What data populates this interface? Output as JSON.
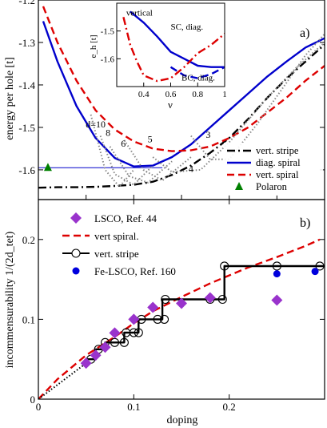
{
  "chart_data": [
    {
      "type": "line",
      "panel_label": "a)",
      "xlim": [
        0,
        0.3
      ],
      "ylim": [
        -1.67,
        -1.2
      ],
      "ylabel": "energy per hole [t]",
      "yticks": [
        -1.6,
        -1.5,
        -1.4,
        -1.3,
        -1.2
      ],
      "ytick_labels": [
        "-1.6",
        "-1.5",
        "-1.4",
        "-1.3",
        "-1.2"
      ],
      "legend_position": "bottom-right",
      "legend": [
        {
          "label": "vert. stripe",
          "style": "dashdot",
          "color": "#000000"
        },
        {
          "label": "diag. spiral",
          "style": "solid",
          "color": "#0000cc"
        },
        {
          "label": "vert. spiral",
          "style": "dashed",
          "color": "#dd0000"
        },
        {
          "label": "Polaron",
          "style": "triangle",
          "color": "#008000"
        }
      ],
      "series": [
        {
          "name": "vert. stripe",
          "color": "#000000",
          "style": "dashdot",
          "x": [
            0,
            0.02,
            0.04,
            0.06,
            0.08,
            0.1,
            0.12,
            0.14,
            0.16,
            0.18,
            0.2,
            0.22,
            0.24,
            0.26,
            0.28,
            0.3
          ],
          "y": [
            -1.642,
            -1.641,
            -1.641,
            -1.64,
            -1.638,
            -1.635,
            -1.628,
            -1.612,
            -1.59,
            -1.56,
            -1.525,
            -1.48,
            -1.43,
            -1.385,
            -1.345,
            -1.305
          ]
        },
        {
          "name": "diag. spiral",
          "color": "#0000cc",
          "style": "solid",
          "x": [
            0.005,
            0.02,
            0.04,
            0.06,
            0.08,
            0.1,
            0.12,
            0.14,
            0.16,
            0.18,
            0.2,
            0.22,
            0.24,
            0.26,
            0.28,
            0.3
          ],
          "y": [
            -1.25,
            -1.345,
            -1.45,
            -1.525,
            -1.572,
            -1.592,
            -1.59,
            -1.57,
            -1.54,
            -1.5,
            -1.46,
            -1.42,
            -1.38,
            -1.345,
            -1.312,
            -1.29
          ]
        },
        {
          "name": "vert. spiral",
          "color": "#dd0000",
          "style": "dashed",
          "x": [
            0.005,
            0.02,
            0.04,
            0.06,
            0.08,
            0.1,
            0.12,
            0.14,
            0.16,
            0.18,
            0.2,
            0.22,
            0.24,
            0.26,
            0.28,
            0.3
          ],
          "y": [
            -1.215,
            -1.3,
            -1.39,
            -1.46,
            -1.505,
            -1.533,
            -1.55,
            -1.556,
            -1.554,
            -1.545,
            -1.525,
            -1.5,
            -1.465,
            -1.43,
            -1.39,
            -1.355
          ]
        },
        {
          "name": "Polaron-line",
          "color": "#0000cc",
          "style": "thin",
          "x": [
            0.0,
            0.13
          ],
          "y": [
            -1.595,
            -1.595
          ]
        },
        {
          "name": "d=10",
          "color": "#888888",
          "style": "dotted",
          "x": [
            0.055,
            0.07,
            0.085,
            0.1
          ],
          "y": [
            -1.47,
            -1.6,
            -1.64,
            -1.6
          ]
        },
        {
          "name": "d=8",
          "color": "#888888",
          "style": "dotted",
          "x": [
            0.065,
            0.08,
            0.1,
            0.12
          ],
          "y": [
            -1.52,
            -1.61,
            -1.635,
            -1.59
          ]
        },
        {
          "name": "d=6",
          "color": "#888888",
          "style": "dotted",
          "x": [
            0.075,
            0.095,
            0.115,
            0.14
          ],
          "y": [
            -1.545,
            -1.615,
            -1.63,
            -1.58
          ]
        },
        {
          "name": "d=5",
          "color": "#888888",
          "style": "dotted",
          "x": [
            0.09,
            0.11,
            0.13,
            0.16
          ],
          "y": [
            -1.53,
            -1.6,
            -1.625,
            -1.57
          ]
        },
        {
          "name": "d=4",
          "color": "#888888",
          "style": "dotted",
          "x": [
            0.12,
            0.14,
            0.17,
            0.2,
            0.24,
            0.27,
            0.3
          ],
          "y": [
            -1.57,
            -1.605,
            -1.6,
            -1.535,
            -1.43,
            -1.36,
            -1.3
          ]
        },
        {
          "name": "d=3",
          "color": "#888888",
          "style": "dotted",
          "x": [
            0.16,
            0.18,
            0.2,
            0.23,
            0.26,
            0.28,
            0.3
          ],
          "y": [
            -1.52,
            -1.575,
            -1.575,
            -1.49,
            -1.395,
            -1.33,
            -1.28
          ]
        }
      ],
      "points": [
        {
          "name": "Polaron",
          "x": 0.01,
          "y": -1.595,
          "color": "#008000",
          "marker": "triangle"
        }
      ],
      "annotations": [
        {
          "text": "d=10",
          "x": 0.06,
          "y": -1.5
        },
        {
          "text": "8",
          "x": 0.073,
          "y": -1.52
        },
        {
          "text": "6",
          "x": 0.089,
          "y": -1.545
        },
        {
          "text": "5",
          "x": 0.117,
          "y": -1.535
        },
        {
          "text": "4",
          "x": 0.16,
          "y": -1.605
        },
        {
          "text": "3",
          "x": 0.178,
          "y": -1.525
        }
      ],
      "inset": {
        "xlim": [
          0.2,
          1.0
        ],
        "ylim": [
          -1.7,
          -1.4
        ],
        "xlabel": "ν",
        "ylabel": "e_h [t]",
        "xticks": [
          0.2,
          0.4,
          0.6,
          0.8,
          1
        ],
        "xtick_labels": [
          "",
          "0.4",
          "0.6",
          "0.8",
          "1"
        ],
        "yticks": [
          -1.6,
          -1.5
        ],
        "ytick_labels": [
          "-1.6",
          "-1.5"
        ],
        "labels": [
          {
            "text": "vertical",
            "color": "#dd0000",
            "x": 0.27,
            "y": -1.445
          },
          {
            "text": "SC, diag.",
            "color": "#0000cc",
            "x": 0.6,
            "y": -1.495
          },
          {
            "text": "BC, diag.",
            "color": "#0000cc",
            "x": 0.68,
            "y": -1.678
          }
        ],
        "series": [
          {
            "name": "SC, diag.",
            "color": "#0000cc",
            "style": "solid",
            "x": [
              0.3,
              0.4,
              0.5,
              0.6,
              0.7,
              0.8,
              0.9,
              1.0
            ],
            "y": [
              -1.43,
              -1.47,
              -1.52,
              -1.575,
              -1.6,
              -1.625,
              -1.63,
              -1.63
            ]
          },
          {
            "name": "BC, diag.",
            "color": "#0000cc",
            "style": "dashed",
            "x": [
              0.6,
              0.7,
              0.8,
              0.9,
              1.0
            ],
            "y": [
              -1.63,
              -1.66,
              -1.67,
              -1.655,
              -1.63
            ]
          },
          {
            "name": "vertical",
            "color": "#dd0000",
            "style": "dashdot",
            "x": [
              0.25,
              0.3,
              0.35,
              0.4,
              0.5,
              0.6,
              0.7,
              0.8,
              0.9,
              1.0
            ],
            "y": [
              -1.45,
              -1.55,
              -1.61,
              -1.66,
              -1.68,
              -1.67,
              -1.63,
              -1.58,
              -1.55,
              -1.51
            ]
          }
        ]
      }
    },
    {
      "type": "line",
      "panel_label": "b)",
      "xlim": [
        0,
        0.3
      ],
      "ylim": [
        0,
        0.25
      ],
      "xlabel": "doping",
      "ylabel": "incommensurability 1/(2d_tet)",
      "xticks": [
        0,
        0.1,
        0.2
      ],
      "xtick_labels": [
        "0",
        "0.1",
        "0.2"
      ],
      "yticks": [
        0,
        0.1,
        0.2
      ],
      "ytick_labels": [
        "0",
        "0.1",
        "0.2"
      ],
      "legend_position": "top-left",
      "legend": [
        {
          "label": "LSCO, Ref. 44",
          "style": "diamond",
          "color": "#9933cc"
        },
        {
          "label": "vert spiral.",
          "style": "dashed",
          "color": "#dd0000"
        },
        {
          "label": "vert. stripe",
          "style": "step-circle",
          "color": "#000000"
        },
        {
          "label": "Fe-LSCO, Ref. 160",
          "style": "dot",
          "color": "#0000dd"
        }
      ],
      "series": [
        {
          "name": "vert spiral.",
          "color": "#dd0000",
          "style": "dashed",
          "x": [
            0,
            0.02,
            0.05,
            0.08,
            0.1,
            0.12,
            0.15,
            0.18,
            0.2,
            0.22,
            0.25,
            0.28,
            0.295
          ],
          "y": [
            0,
            0.025,
            0.055,
            0.078,
            0.095,
            0.11,
            0.128,
            0.145,
            0.155,
            0.165,
            0.178,
            0.192,
            0.2
          ]
        },
        {
          "name": "dotted-guide",
          "color": "#000000",
          "style": "dotted",
          "x": [
            0,
            0.05
          ],
          "y": [
            0,
            0.045
          ]
        },
        {
          "name": "vert. stripe",
          "color": "#000000",
          "style": "step",
          "x": [
            0.05,
            0.06,
            0.06,
            0.07,
            0.07,
            0.08,
            0.08,
            0.09,
            0.09,
            0.1,
            0.1,
            0.105,
            0.105,
            0.11,
            0.11,
            0.13,
            0.13,
            0.135,
            0.135,
            0.18,
            0.18,
            0.195,
            0.195,
            0.3
          ],
          "y": [
            0.05,
            0.05,
            0.0625,
            0.0625,
            0.071,
            0.071,
            0.071,
            0.071,
            0.0833,
            0.0833,
            0.0833,
            0.0833,
            0.1,
            0.1,
            0.1,
            0.1,
            0.125,
            0.125,
            0.125,
            0.125,
            0.125,
            0.125,
            0.1667,
            0.1667
          ]
        }
      ],
      "stripe_circles": [
        {
          "x": 0.055,
          "y": 0.05
        },
        {
          "x": 0.063,
          "y": 0.0625
        },
        {
          "x": 0.07,
          "y": 0.071
        },
        {
          "x": 0.08,
          "y": 0.071
        },
        {
          "x": 0.09,
          "y": 0.071
        },
        {
          "x": 0.092,
          "y": 0.0833
        },
        {
          "x": 0.1,
          "y": 0.0833
        },
        {
          "x": 0.105,
          "y": 0.0833
        },
        {
          "x": 0.108,
          "y": 0.1
        },
        {
          "x": 0.125,
          "y": 0.1
        },
        {
          "x": 0.132,
          "y": 0.1
        },
        {
          "x": 0.133,
          "y": 0.125
        },
        {
          "x": 0.18,
          "y": 0.125
        },
        {
          "x": 0.193,
          "y": 0.125
        },
        {
          "x": 0.195,
          "y": 0.1667
        },
        {
          "x": 0.25,
          "y": 0.1667
        },
        {
          "x": 0.295,
          "y": 0.1667
        }
      ],
      "points_lsco": [
        {
          "x": 0.05,
          "y": 0.045
        },
        {
          "x": 0.06,
          "y": 0.055
        },
        {
          "x": 0.07,
          "y": 0.065
        },
        {
          "x": 0.08,
          "y": 0.083
        },
        {
          "x": 0.1,
          "y": 0.1
        },
        {
          "x": 0.12,
          "y": 0.115
        },
        {
          "x": 0.15,
          "y": 0.12
        },
        {
          "x": 0.18,
          "y": 0.127
        },
        {
          "x": 0.25,
          "y": 0.124
        }
      ],
      "points_fe": [
        {
          "x": 0.25,
          "y": 0.157
        },
        {
          "x": 0.29,
          "y": 0.16
        }
      ]
    }
  ]
}
